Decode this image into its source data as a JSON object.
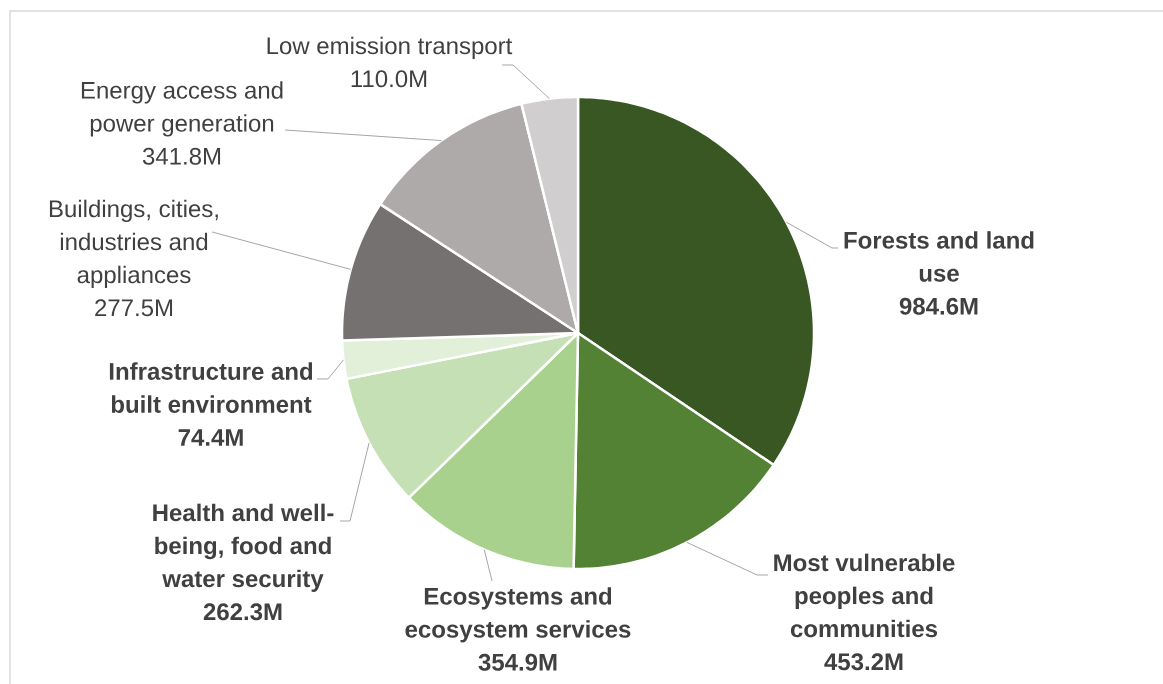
{
  "chart_data": {
    "type": "pie",
    "categories": [
      "**Forests and land use**",
      "**Most vulnerable peoples and communities**",
      "**Ecosystems and ecosystem services**",
      "**Health and well-being, food and water security**",
      "**Infrastructure and built environment**",
      "Buildings, cities, industries and appliances",
      "Energy access and power generation",
      "Low emission transport"
    ],
    "values": [
      984.6,
      453.2,
      354.9,
      262.3,
      74.4,
      277.5,
      341.8,
      110.0
    ],
    "value_labels": [
      "**984.6M**",
      "**453.2M**",
      "**354.9M**",
      "**262.3M**",
      "**74.4M**",
      "277.5M",
      "341.8M",
      "110.0M"
    ],
    "colors": [
      "#385723",
      "#548235",
      "#a9d18e",
      "#c5e0b4",
      "#e2f0d9",
      "#767171",
      "#aeaaaa",
      "#d0cece"
    ]
  }
}
